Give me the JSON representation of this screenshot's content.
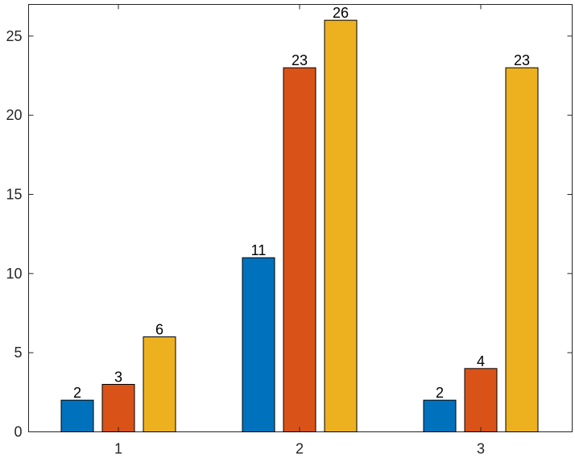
{
  "chart_data": {
    "type": "bar",
    "categories": [
      "1",
      "2",
      "3"
    ],
    "series": [
      {
        "values": [
          2,
          11,
          2
        ],
        "color": "#0072BD"
      },
      {
        "values": [
          3,
          23,
          4
        ],
        "color": "#D95319"
      },
      {
        "values": [
          6,
          26,
          23
        ],
        "color": "#EDB120"
      }
    ],
    "ylim": [
      0,
      27
    ],
    "yticks": [
      0,
      5,
      10,
      15,
      20,
      25
    ],
    "grid": false,
    "legend": "none",
    "title": "",
    "xlabel": "",
    "ylabel": ""
  }
}
